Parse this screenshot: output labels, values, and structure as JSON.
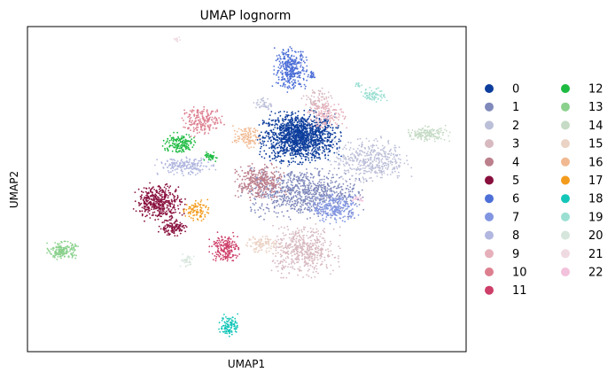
{
  "chart_data": {
    "type": "scatter",
    "title": "UMAP lognorm",
    "xlabel": "UMAP1",
    "ylabel": "UMAP2",
    "xlim": [
      0,
      100
    ],
    "ylim": [
      0,
      100
    ],
    "xticks": false,
    "yticks": false,
    "grid": false,
    "legend": {
      "placement": "right-outside",
      "columns": 2
    },
    "series": [
      {
        "name": "0",
        "color": "#0d3d9c",
        "clusters": [
          {
            "cx": 62,
            "cy": 66,
            "rx": 8,
            "ry": 7,
            "n": 1400
          }
        ]
      },
      {
        "name": "1",
        "color": "#8089bb",
        "clusters": [
          {
            "cx": 63,
            "cy": 49,
            "rx": 12,
            "ry": 7,
            "n": 800
          }
        ]
      },
      {
        "name": "2",
        "color": "#bcbfd8",
        "clusters": [
          {
            "cx": 78,
            "cy": 59,
            "rx": 8,
            "ry": 6,
            "n": 420
          },
          {
            "cx": 54,
            "cy": 76,
            "rx": 2,
            "ry": 2,
            "n": 40
          }
        ]
      },
      {
        "name": "3",
        "color": "#d7b9c0",
        "clusters": [
          {
            "cx": 63,
            "cy": 31,
            "rx": 7,
            "ry": 7,
            "n": 500
          },
          {
            "cx": 66,
            "cy": 77,
            "rx": 3,
            "ry": 4,
            "n": 80
          }
        ]
      },
      {
        "name": "4",
        "color": "#bc7f8c",
        "clusters": [
          {
            "cx": 53,
            "cy": 52,
            "rx": 5,
            "ry": 5,
            "n": 340
          }
        ]
      },
      {
        "name": "5",
        "color": "#880f3d",
        "clusters": [
          {
            "cx": 30,
            "cy": 46,
            "rx": 5,
            "ry": 5,
            "n": 420
          },
          {
            "cx": 33,
            "cy": 38,
            "rx": 3,
            "ry": 2,
            "n": 120
          }
        ]
      },
      {
        "name": "6",
        "color": "#4d6fd7",
        "clusters": [
          {
            "cx": 60,
            "cy": 87,
            "rx": 3.5,
            "ry": 6,
            "n": 340
          },
          {
            "cx": 65,
            "cy": 85,
            "rx": 1,
            "ry": 1,
            "n": 25
          }
        ]
      },
      {
        "name": "7",
        "color": "#8195e1",
        "clusters": [
          {
            "cx": 70,
            "cy": 44,
            "rx": 5,
            "ry": 4,
            "n": 240
          }
        ]
      },
      {
        "name": "8",
        "color": "#b1b7df",
        "clusters": [
          {
            "cx": 36,
            "cy": 57,
            "rx": 6,
            "ry": 2.5,
            "n": 190
          }
        ]
      },
      {
        "name": "9",
        "color": "#e6b0bb",
        "clusters": [
          {
            "cx": 68,
            "cy": 73,
            "rx": 4,
            "ry": 4,
            "n": 150
          }
        ]
      },
      {
        "name": "10",
        "color": "#dd7f8f",
        "clusters": [
          {
            "cx": 40,
            "cy": 71,
            "rx": 4.5,
            "ry": 4,
            "n": 200
          }
        ]
      },
      {
        "name": "11",
        "color": "#cd3e68",
        "clusters": [
          {
            "cx": 45,
            "cy": 32,
            "rx": 3,
            "ry": 4,
            "n": 190
          }
        ]
      },
      {
        "name": "12",
        "color": "#1dbb40",
        "clusters": [
          {
            "cx": 34.5,
            "cy": 64,
            "rx": 3.5,
            "ry": 3,
            "n": 150
          },
          {
            "cx": 42,
            "cy": 60,
            "rx": 1.5,
            "ry": 1.5,
            "n": 40
          }
        ]
      },
      {
        "name": "13",
        "color": "#8ad18d",
        "clusters": [
          {
            "cx": 8,
            "cy": 31,
            "rx": 3,
            "ry": 2.5,
            "n": 170
          }
        ]
      },
      {
        "name": "14",
        "color": "#c5dbc5",
        "clusters": [
          {
            "cx": 91,
            "cy": 67,
            "rx": 4.5,
            "ry": 2,
            "n": 150
          }
        ]
      },
      {
        "name": "15",
        "color": "#ead2c4",
        "clusters": [
          {
            "cx": 53.5,
            "cy": 33,
            "rx": 4,
            "ry": 2.5,
            "n": 110
          }
        ]
      },
      {
        "name": "16",
        "color": "#f1b991",
        "clusters": [
          {
            "cx": 50,
            "cy": 66,
            "rx": 3,
            "ry": 3,
            "n": 110
          }
        ]
      },
      {
        "name": "17",
        "color": "#f39b1c",
        "clusters": [
          {
            "cx": 38.5,
            "cy": 43.5,
            "rx": 2.5,
            "ry": 3,
            "n": 90
          }
        ]
      },
      {
        "name": "18",
        "color": "#13c6b8",
        "clusters": [
          {
            "cx": 46,
            "cy": 8,
            "rx": 2,
            "ry": 3,
            "n": 110
          }
        ]
      },
      {
        "name": "19",
        "color": "#9adfd2",
        "clusters": [
          {
            "cx": 79,
            "cy": 79,
            "rx": 2.5,
            "ry": 2,
            "n": 80
          },
          {
            "cx": 75.5,
            "cy": 82,
            "rx": 1,
            "ry": 0.6,
            "n": 15
          }
        ]
      },
      {
        "name": "20",
        "color": "#d6e6dc",
        "clusters": [
          {
            "cx": 36.5,
            "cy": 28,
            "rx": 1.5,
            "ry": 2,
            "n": 35
          }
        ]
      },
      {
        "name": "21",
        "color": "#f0dae2",
        "clusters": [
          {
            "cx": 34,
            "cy": 96,
            "rx": 1,
            "ry": 0.7,
            "n": 12
          }
        ]
      },
      {
        "name": "22",
        "color": "#f2c1db",
        "clusters": [
          {
            "cx": 75,
            "cy": 47,
            "rx": 1.5,
            "ry": 1,
            "n": 15
          }
        ]
      }
    ]
  }
}
